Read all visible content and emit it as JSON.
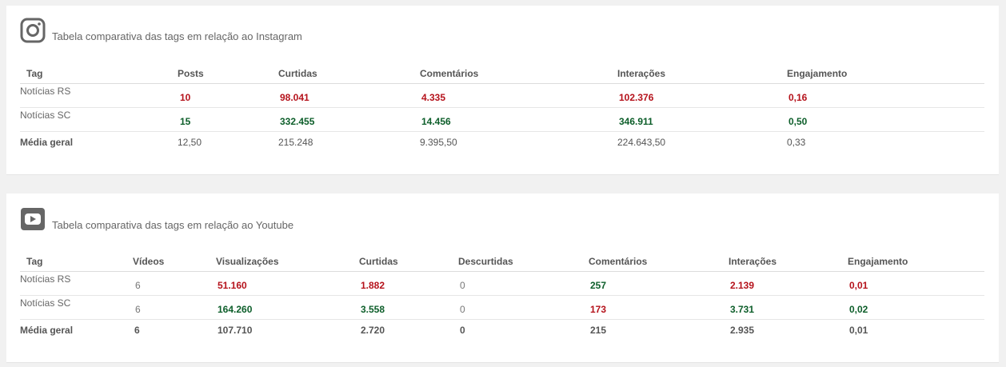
{
  "instagram": {
    "title": "Tabela comparativa das tags em relação ao Instagram",
    "icon": "instagram-icon",
    "headers": [
      "Tag",
      "Posts",
      "Curtidas",
      "Comentários",
      "Interações",
      "Engajamento"
    ],
    "rows": [
      {
        "tag": "Notícias RS",
        "posts": "10",
        "curtidas": "98.041",
        "comentarios": "4.335",
        "interacoes": "102.376",
        "engajamento": "0,16"
      },
      {
        "tag": "Notícias SC",
        "posts": "15",
        "curtidas": "332.455",
        "comentarios": "14.456",
        "interacoes": "346.911",
        "engajamento": "0,50"
      }
    ],
    "average": {
      "tag": "Média geral",
      "posts": "12,50",
      "curtidas": "215.248",
      "comentarios": "9.395,50",
      "interacoes": "224.643,50",
      "engajamento": "0,33"
    }
  },
  "youtube": {
    "title": "Tabela comparativa das tags em relação ao Youtube",
    "icon": "youtube-icon",
    "headers": [
      "Tag",
      "Vídeos",
      "Visualizações",
      "Curtidas",
      "Descurtidas",
      "Comentários",
      "Interações",
      "Engajamento"
    ],
    "rows": [
      {
        "tag": "Notícias RS",
        "videos": "6",
        "visualizacoes": "51.160",
        "curtidas": "1.882",
        "descurtidas": "0",
        "comentarios": "257",
        "interacoes": "2.139",
        "engajamento": "0,01"
      },
      {
        "tag": "Notícias SC",
        "videos": "6",
        "visualizacoes": "164.260",
        "curtidas": "3.558",
        "descurtidas": "0",
        "comentarios": "173",
        "interacoes": "3.731",
        "engajamento": "0,02"
      }
    ],
    "average": {
      "tag": "Média geral",
      "videos": "6",
      "visualizacoes": "107.710",
      "curtidas": "2.720",
      "descurtidas": "0",
      "comentarios": "215",
      "interacoes": "2.935",
      "engajamento": "0,01"
    }
  },
  "colors": {
    "higher": "#0d5e2a",
    "lower": "#b5121b",
    "background": "#f1f1f1",
    "card": "#ffffff"
  }
}
